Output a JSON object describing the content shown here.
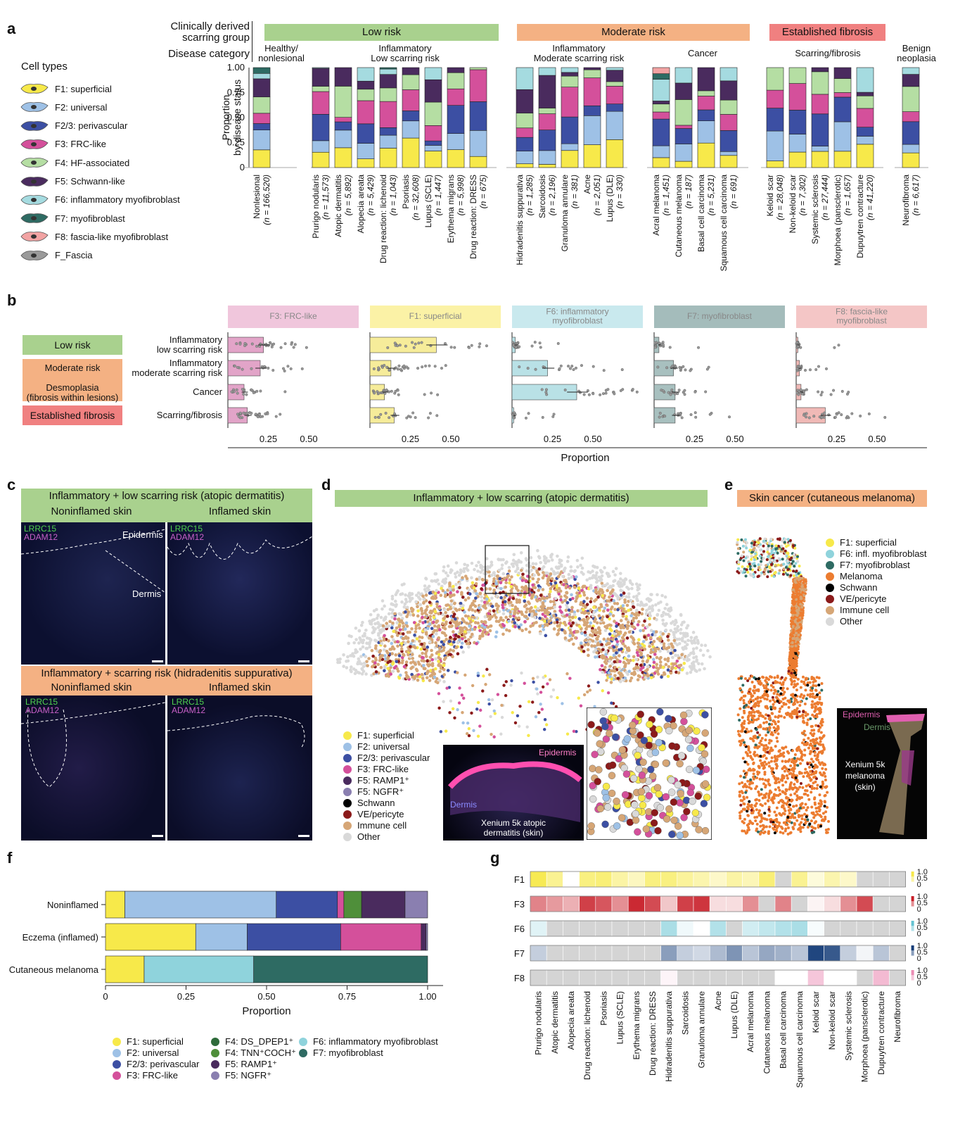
{
  "panels": {
    "a": "a",
    "b": "b",
    "c": "c",
    "d": "d",
    "e": "e",
    "f": "f",
    "g": "g"
  },
  "a": {
    "row_label_1": "Clinically derived\nscarring group",
    "row_label_2": "Disease category",
    "groups": [
      {
        "label": "Low risk",
        "color": "#a9d18e"
      },
      {
        "label": "Moderate risk",
        "color": "#f4b183"
      },
      {
        "label": "Established fibrosis",
        "color": "#f08080"
      }
    ],
    "categories": [
      "Healthy/\nnonlesional",
      "Inflammatory\nLow scarring risk",
      "Inflammatory\nModerate scarring risk",
      "Cancer",
      "Scarring/fibrosis",
      "Benign\nneoplasia"
    ],
    "legend_title": "Cell types",
    "cell_types": [
      {
        "label": "F1: superficial",
        "color": "#f7e94a"
      },
      {
        "label": "F2: universal",
        "color": "#9ec1e6"
      },
      {
        "label": "F2/3: perivascular",
        "color": "#3c4fa3"
      },
      {
        "label": "F3: FRC-like",
        "color": "#d4509b"
      },
      {
        "label": "F4: HF-associated",
        "color": "#b5dea3"
      },
      {
        "label": "F5: Schwann-like",
        "color": "#4a2b5e"
      },
      {
        "label": "F6: inflammatory myofibroblast",
        "color": "#a5dbe0"
      },
      {
        "label": "F7: myofibroblast",
        "color": "#2e6b63"
      },
      {
        "label": "F8: fascia-like myofibroblast",
        "color": "#f2a3a3"
      },
      {
        "label": "F_Fascia",
        "color": "#9a9a9a"
      }
    ],
    "ylabel": "Proportion\nby disease status",
    "yticks": [
      "1.00",
      "0.75",
      "0.50",
      "0.25",
      "0"
    ],
    "bars": [
      {
        "label": "Nonlesional",
        "n": "(n = 166,520)"
      },
      {
        "label": "Prurigo nodularis",
        "n": "(n = 11,573)"
      },
      {
        "label": "Atopic dermatitis",
        "n": "(n = 5,892)"
      },
      {
        "label": "Alopecia areata",
        "n": "(n = 5,429)"
      },
      {
        "label": "Drug reaction: lichenoid",
        "n": "(n = 1,043)"
      },
      {
        "label": "Psoriasis",
        "n": "(n = 32,608)"
      },
      {
        "label": "Lupus (SCLE)",
        "n": "(n = 1,447)"
      },
      {
        "label": "Erythema migrans",
        "n": "(n = 5,998)"
      },
      {
        "label": "Drug reaction: DRESS",
        "n": "(n = 675)"
      },
      {
        "label": "Hidradenitis suppurativa",
        "n": "(n = 1,285)"
      },
      {
        "label": "Sarcoidosis",
        "n": "(n = 2,196)"
      },
      {
        "label": "Granuloma annulare",
        "n": "(n = 381)"
      },
      {
        "label": "Acne",
        "n": "(n = 2,051)"
      },
      {
        "label": "Lupus (DLE)",
        "n": "(n = 330)"
      },
      {
        "label": "Acral melanoma",
        "n": "(n = 1,451)"
      },
      {
        "label": "Cutaneous melanoma",
        "n": "(n = 187)"
      },
      {
        "label": "Basal cell carcinoma",
        "n": "(n = 5,231)"
      },
      {
        "label": "Squamous cell carcinoma",
        "n": "(n = 691)"
      },
      {
        "label": "Keloid scar",
        "n": "(n = 28,048)"
      },
      {
        "label": "Non-keloid scar",
        "n": "(n = 7,302)"
      },
      {
        "label": "Systemic sclerosis",
        "n": "(n = 27,444)"
      },
      {
        "label": "Morphoea (pansclerotic)",
        "n": "(n = 1,657)"
      },
      {
        "label": "Dupuytren contracture",
        "n": "(n = 41,220)"
      },
      {
        "label": "Neurofibroma",
        "n": "(n = 6,617)"
      }
    ]
  },
  "b": {
    "risk_boxes": [
      {
        "label": "Low risk",
        "color": "#a9d18e"
      },
      {
        "label": "Moderate risk\n\nDesmoplasia\n(fibrosis within lesions)",
        "color": "#f4b183"
      },
      {
        "label": "Established fibrosis",
        "color": "#f08080"
      }
    ],
    "rows": [
      "Inflammatory\nlow scarring risk",
      "Inflammatory\nmoderate scarring risk",
      "Cancer",
      "Scarring/fibrosis"
    ],
    "facets": [
      {
        "title": "F3: FRC-like",
        "color": "#f0c6dc",
        "fill": "#e2a4c8",
        "means": [
          0.22,
          0.2,
          0.1,
          0.12
        ]
      },
      {
        "title": "F1: superficial",
        "color": "#fbf2a6",
        "fill": "#f6ec9a",
        "means": [
          0.41,
          0.13,
          0.09,
          0.15
        ]
      },
      {
        "title": "F6: inflammatory\nmyofibroblast",
        "color": "#c9e9ee",
        "fill": "#b9e1e6",
        "means": [
          0.02,
          0.22,
          0.4,
          0.01
        ]
      },
      {
        "title": "F7: myofibroblast",
        "color": "#a4bcbb",
        "fill": "#a8c0bf",
        "means": [
          0.03,
          0.12,
          0.13,
          0.13
        ]
      },
      {
        "title": "F8: fascia-like\nmyofibroblast",
        "color": "#f4c6c6",
        "fill": "#f0b9b6",
        "means": [
          0.01,
          0.02,
          0.03,
          0.18
        ]
      }
    ],
    "xticks": [
      "0.25",
      "0.50"
    ],
    "xlabel": "Proportion"
  },
  "c": {
    "title_top": "Inflammatory + low scarring risk (atopic dermatitis)",
    "title_bottom": "Inflammatory + scarring risk (hidradenitis suppurativa)",
    "noninflamed": "Noninflamed skin",
    "inflamed": "Inflamed skin",
    "marker1": "LRRC15",
    "marker2": "ADAM12",
    "epidermis": "Epidermis",
    "dermis": "Dermis"
  },
  "d": {
    "title": "Inflammatory + low scarring (atopic dermatitis)",
    "legend": [
      {
        "label": "F1: superficial",
        "color": "#f7e94a"
      },
      {
        "label": "F2: universal",
        "color": "#9ec1e6"
      },
      {
        "label": "F2/3: perivascular",
        "color": "#3c4fa3"
      },
      {
        "label": "F3: FRC-like",
        "color": "#d4509b"
      },
      {
        "label": "F5: RAMP1⁺",
        "color": "#4a2b5e"
      },
      {
        "label": "F5: NGFR⁺",
        "color": "#8a7fb0"
      },
      {
        "label": "Schwann",
        "color": "#000000"
      },
      {
        "label": "VE/pericyte",
        "color": "#8b1a1a"
      },
      {
        "label": "Immune cell",
        "color": "#d6a676"
      },
      {
        "label": "Other",
        "color": "#d9d9d9"
      }
    ],
    "inset_epidermis": "Epidermis",
    "inset_dermis": "Dermis",
    "inset_caption": "Xenium 5k atopic\ndermatitis (skin)"
  },
  "e": {
    "title": "Skin cancer (cutaneous melanoma)",
    "legend": [
      {
        "label": "F1: superficial",
        "color": "#f7e94a"
      },
      {
        "label": "F6: infl. myofibroblast",
        "color": "#8fd3dc"
      },
      {
        "label": "F7: myofibroblast",
        "color": "#2e6b63"
      },
      {
        "label": "Melanoma",
        "color": "#ec7c30"
      },
      {
        "label": "Schwann",
        "color": "#000000"
      },
      {
        "label": "VE/pericyte",
        "color": "#8b1a1a"
      },
      {
        "label": "Immune cell",
        "color": "#d6a676"
      },
      {
        "label": "Other",
        "color": "#d9d9d9"
      }
    ],
    "inset_epidermis": "Epidermis",
    "inset_dermis": "Dermis",
    "inset_caption": "Xenium 5k\nmelanoma\n(skin)"
  },
  "chart_data": [
    {
      "type": "bar",
      "title": "",
      "orientation": "horizontal-stacked",
      "categories": [
        "Noninflamed",
        "Eczema (inflamed)",
        "Cutaneous melanoma"
      ],
      "xlabel": "Proportion",
      "xlim": [
        0,
        1
      ],
      "xticks": [
        "0",
        "0.25",
        "0.50",
        "0.75",
        "1.00"
      ],
      "series": [
        {
          "name": "F1: superficial",
          "color": "#f7e94a",
          "values": [
            0.06,
            0.28,
            0.12
          ]
        },
        {
          "name": "F2: universal",
          "color": "#9ec1e6",
          "values": [
            0.47,
            0.16,
            0.0
          ]
        },
        {
          "name": "F2/3: perivascular",
          "color": "#3c4fa3",
          "values": [
            0.19,
            0.29,
            0.0
          ]
        },
        {
          "name": "F3: FRC-like",
          "color": "#d4509b",
          "values": [
            0.02,
            0.25,
            0.0
          ]
        },
        {
          "name": "F4: DS_DPEP1⁺",
          "color": "#2e6b3a",
          "values": [
            0.0,
            0.0,
            0.0
          ]
        },
        {
          "name": "F4: TNN⁺COCH⁺",
          "color": "#4f8f3a",
          "values": [
            0.055,
            0.0,
            0.0
          ]
        },
        {
          "name": "F5: RAMP1⁺",
          "color": "#4a2b5e",
          "values": [
            0.135,
            0.015,
            0.0
          ]
        },
        {
          "name": "F5: NGFR⁺",
          "color": "#8a7fb0",
          "values": [
            0.07,
            0.005,
            0.0
          ]
        },
        {
          "name": "F6: inflammatory myofibroblast",
          "color": "#8fd3dc",
          "values": [
            0.0,
            0.0,
            0.34
          ]
        },
        {
          "name": "F7: myofibroblast",
          "color": "#2e6b63",
          "values": [
            0.0,
            0.0,
            0.54
          ]
        }
      ]
    },
    {
      "type": "heatmap",
      "title": "",
      "rows": [
        "F1",
        "F3",
        "F6",
        "F7",
        "F8"
      ],
      "columns": [
        "Prurigo nodularis",
        "Atopic dermatitis",
        "Alopecia areata",
        "Drug reaction: lichenoid",
        "Psoriasis",
        "Lupus (SCLE)",
        "Erythema migrans",
        "Drug reaction: DRESS",
        "Hidradenitis suppurativa",
        "Sarcoidosis",
        "Granuloma annulare",
        "Acne",
        "Lupus (DLE)",
        "Acral melanoma",
        "Cutaneous melanoma",
        "Basal cell carcinoma",
        "Squamous cell carcinoma",
        "Keloid scar",
        "Non-keloid scar",
        "Systemic sclerosis",
        "Morphoea (pansclerotic)",
        "Dupuytren contracture",
        "Neurofibroma"
      ],
      "colorbar_ticks": [
        "1.0",
        "0.5",
        "0"
      ],
      "values": [
        [
          0.95,
          0.6,
          0.0,
          0.7,
          0.75,
          0.5,
          0.35,
          0.7,
          0.7,
          0.55,
          0.45,
          0.3,
          0.5,
          0.4,
          0.75,
          null,
          0.6,
          0.2,
          0.45,
          0.3,
          null,
          null,
          null
        ],
        [
          0.55,
          0.45,
          0.35,
          0.85,
          0.75,
          0.5,
          0.95,
          0.8,
          0.25,
          0.85,
          0.9,
          0.15,
          0.15,
          0.5,
          null,
          0.55,
          null,
          0.05,
          0.15,
          0.5,
          0.8,
          null,
          null
        ],
        [
          0.2,
          null,
          null,
          null,
          null,
          null,
          null,
          null,
          0.55,
          0.1,
          0.0,
          0.5,
          null,
          0.3,
          0.4,
          0.5,
          0.55,
          0.05,
          null,
          null,
          null,
          null,
          null
        ],
        [
          0.25,
          null,
          null,
          null,
          null,
          null,
          null,
          null,
          0.5,
          0.25,
          0.2,
          0.35,
          0.55,
          0.3,
          0.45,
          0.4,
          0.3,
          0.95,
          0.85,
          0.25,
          0.05,
          0.3,
          null
        ],
        [
          null,
          null,
          null,
          null,
          null,
          null,
          null,
          null,
          0.1,
          null,
          null,
          null,
          null,
          null,
          null,
          0.0,
          0.0,
          0.5,
          0.0,
          0.0,
          null,
          0.6,
          null
        ]
      ]
    }
  ]
}
